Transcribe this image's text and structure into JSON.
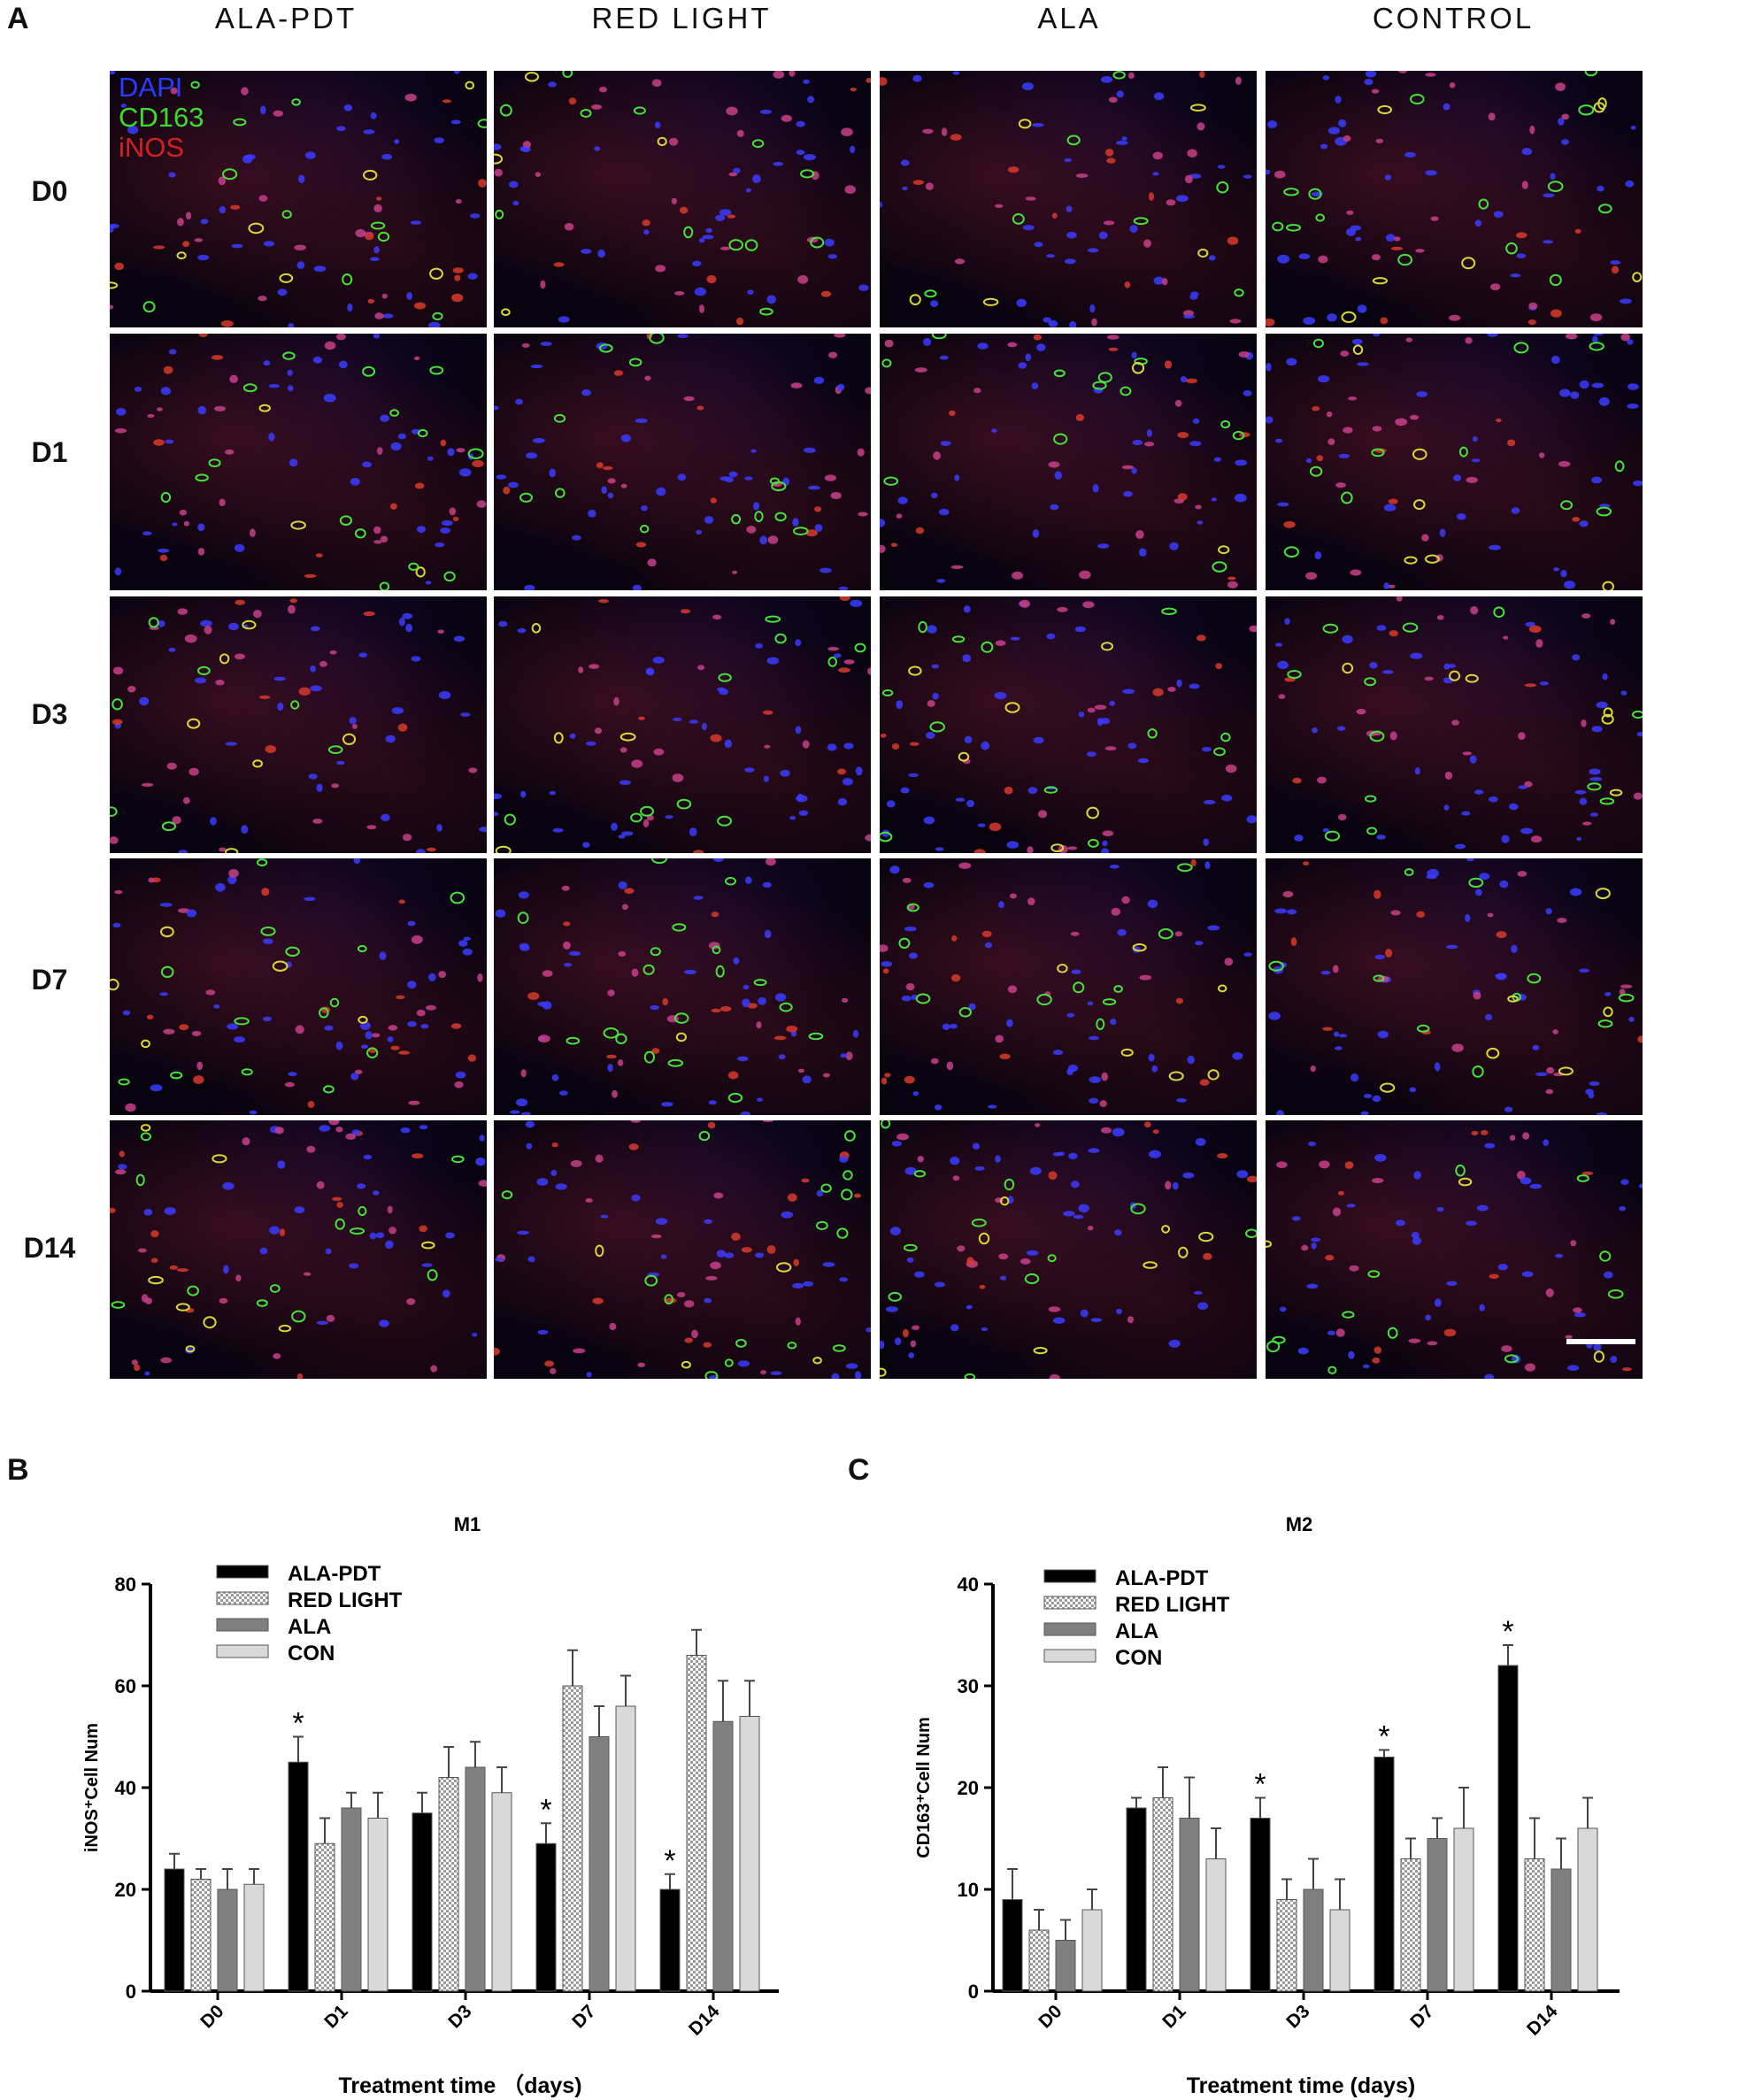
{
  "figure": {
    "panel_a": "A",
    "panel_b": "B",
    "panel_c": "C",
    "columns": [
      "ALA-PDT",
      "RED LIGHT",
      "ALA",
      "CONTROL"
    ],
    "rows": [
      "D0",
      "D1",
      "D3",
      "D7",
      "D14"
    ],
    "stain_legend": [
      {
        "label": "DAPI",
        "color": "#2a3cff"
      },
      {
        "label": "CD163",
        "color": "#3ddc2a"
      },
      {
        "label": "iNOS",
        "color": "#d42020"
      }
    ]
  },
  "chart_data": [
    {
      "type": "bar",
      "title": "M1",
      "xlabel": "Treatment time （days)",
      "ylabel": "iNOS⁺Cell Num",
      "ylim": [
        0,
        80
      ],
      "yticks": [
        0,
        20,
        40,
        60,
        80
      ],
      "categories": [
        "D0",
        "D1",
        "D3",
        "D7",
        "D14"
      ],
      "legend_position": "top-left",
      "series": [
        {
          "name": "ALA-PDT",
          "pattern": "solid-black",
          "color": "#000000",
          "values": [
            24,
            45,
            35,
            29,
            20
          ],
          "errors": [
            3,
            5,
            4,
            4,
            3
          ]
        },
        {
          "name": "RED LIGHT",
          "pattern": "checker",
          "color": "#d8d8d8",
          "values": [
            22,
            29,
            42,
            60,
            66
          ],
          "errors": [
            2,
            5,
            6,
            7,
            5
          ]
        },
        {
          "name": "ALA",
          "pattern": "solid-gray",
          "color": "#808080",
          "values": [
            20,
            36,
            44,
            50,
            53
          ],
          "errors": [
            4,
            3,
            5,
            6,
            8
          ]
        },
        {
          "name": "CON",
          "pattern": "solid-lightgray",
          "color": "#d9d9d9",
          "values": [
            21,
            34,
            39,
            56,
            54
          ],
          "errors": [
            3,
            5,
            5,
            6,
            7
          ]
        }
      ],
      "significance": [
        {
          "category": "D1",
          "series": "ALA-PDT",
          "mark": "*"
        },
        {
          "category": "D7",
          "series": "ALA-PDT",
          "mark": "*"
        },
        {
          "category": "D14",
          "series": "ALA-PDT",
          "mark": "*"
        }
      ]
    },
    {
      "type": "bar",
      "title": "M2",
      "xlabel": "Treatment time (days)",
      "ylabel": "CD163⁺Cell Num",
      "ylim": [
        0,
        40
      ],
      "yticks": [
        0,
        10,
        20,
        30,
        40
      ],
      "categories": [
        "D0",
        "D1",
        "D3",
        "D7",
        "D14"
      ],
      "legend_position": "top-left",
      "series": [
        {
          "name": "ALA-PDT",
          "pattern": "solid-black",
          "color": "#000000",
          "values": [
            9,
            18,
            17,
            23,
            32
          ],
          "errors": [
            3,
            1,
            2,
            0.7,
            2
          ]
        },
        {
          "name": "RED LIGHT",
          "pattern": "checker",
          "color": "#d8d8d8",
          "values": [
            6,
            19,
            9,
            13,
            13
          ],
          "errors": [
            2,
            3,
            2,
            2,
            4
          ]
        },
        {
          "name": "ALA",
          "pattern": "solid-gray",
          "color": "#808080",
          "values": [
            5,
            17,
            10,
            15,
            12
          ],
          "errors": [
            2,
            4,
            3,
            2,
            3
          ]
        },
        {
          "name": "CON",
          "pattern": "solid-lightgray",
          "color": "#d9d9d9",
          "values": [
            8,
            13,
            8,
            16,
            16
          ],
          "errors": [
            2,
            3,
            3,
            4,
            3
          ]
        }
      ],
      "significance": [
        {
          "category": "D3",
          "series": "ALA-PDT",
          "mark": "*"
        },
        {
          "category": "D7",
          "series": "ALA-PDT",
          "mark": "*"
        },
        {
          "category": "D14",
          "series": "ALA-PDT",
          "mark": "*"
        }
      ]
    }
  ]
}
